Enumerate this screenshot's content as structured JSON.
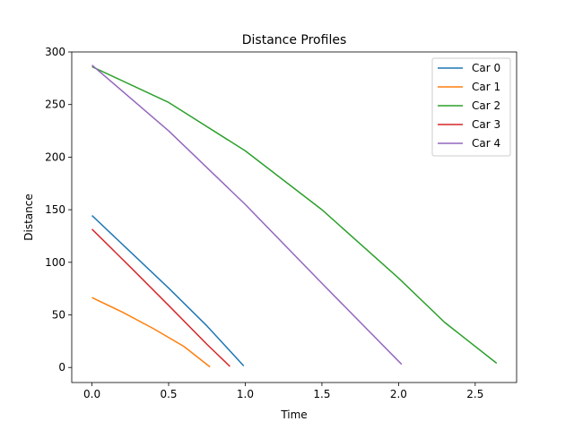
{
  "chart_data": {
    "type": "line",
    "title": "Distance Profiles",
    "xlabel": "Time",
    "ylabel": "Distance",
    "xlim": [
      -0.132,
      2.77
    ],
    "ylim": [
      -14.3,
      300
    ],
    "xticks": [
      0.0,
      0.5,
      1.0,
      1.5,
      2.0,
      2.5
    ],
    "xtick_labels": [
      "0.0",
      "0.5",
      "1.0",
      "1.5",
      "2.0",
      "2.5"
    ],
    "yticks": [
      0,
      50,
      100,
      150,
      200,
      250,
      300
    ],
    "ytick_labels": [
      "0",
      "50",
      "100",
      "150",
      "200",
      "250",
      "300"
    ],
    "grid": false,
    "legend_position": "top-right",
    "series": [
      {
        "name": "Car 0",
        "color": "#1f77b4",
        "x": [
          0.0,
          0.25,
          0.5,
          0.75,
          0.99
        ],
        "y": [
          144.5,
          110.0,
          75.5,
          39.5,
          1.5
        ]
      },
      {
        "name": "Car 1",
        "color": "#ff7f0e",
        "x": [
          0.0,
          0.2,
          0.4,
          0.6,
          0.77
        ],
        "y": [
          66.5,
          52.5,
          37.0,
          20.0,
          0.5
        ]
      },
      {
        "name": "Car 2",
        "color": "#2ca02c",
        "x": [
          0.0,
          0.5,
          1.0,
          1.5,
          2.0,
          2.3,
          2.64
        ],
        "y": [
          286.0,
          252.0,
          206.0,
          150.0,
          85.0,
          43.0,
          4.0
        ]
      },
      {
        "name": "Car 3",
        "color": "#d62728",
        "x": [
          0.0,
          0.25,
          0.5,
          0.75,
          0.9
        ],
        "y": [
          131.5,
          95.5,
          59.0,
          22.0,
          1.0
        ]
      },
      {
        "name": "Car 4",
        "color": "#9467bd",
        "x": [
          0.0,
          0.5,
          1.0,
          1.5,
          2.02
        ],
        "y": [
          287.5,
          225.0,
          155.0,
          80.0,
          3.0
        ]
      }
    ]
  }
}
